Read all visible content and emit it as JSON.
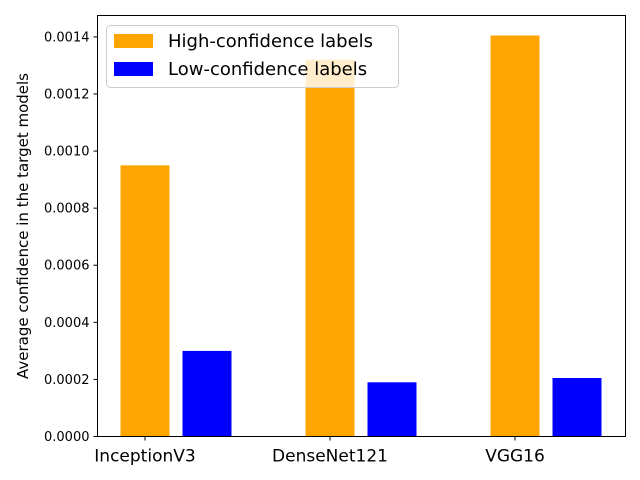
{
  "chart_data": {
    "type": "bar",
    "categories": [
      "InceptionV3",
      "DenseNet121",
      "VGG16"
    ],
    "series": [
      {
        "name": "High-confidence labels",
        "values": [
          0.00095,
          0.00132,
          0.001405
        ],
        "color": "#FFA500"
      },
      {
        "name": "Low-confidence labels",
        "values": [
          0.0003,
          0.00019,
          0.000205
        ],
        "color": "#0000FF"
      }
    ],
    "yticks": [
      "0.0000",
      "0.0002",
      "0.0004",
      "0.0006",
      "0.0008",
      "0.0010",
      "0.0012",
      "0.0014"
    ],
    "ylabel": "Average confidence in the target models",
    "xlabel": "",
    "title": "",
    "ylim": [
      0,
      0.001475
    ],
    "grid": false,
    "legend_position": "top-left"
  }
}
